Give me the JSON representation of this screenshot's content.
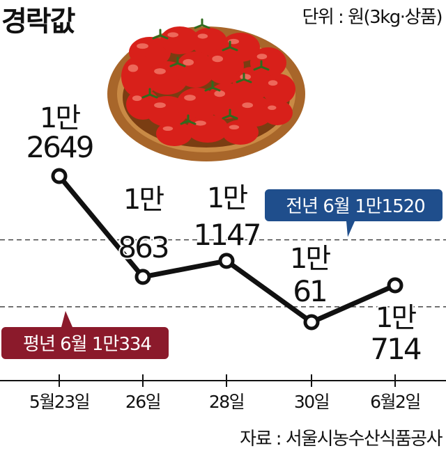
{
  "title": "경락값",
  "unit_label": "단위 : 원(3kg·상품)",
  "source": "자료 : 서울시농수산식품공사",
  "chart_data": {
    "type": "line",
    "categories": [
      "5월23일",
      "26일",
      "28일",
      "30일",
      "6월2일"
    ],
    "values": [
      12649,
      10863,
      11147,
      10061,
      10714
    ],
    "point_labels": [
      [
        "1만",
        "2649"
      ],
      [
        "1만",
        "863"
      ],
      [
        "1만",
        "1147"
      ],
      [
        "1만",
        "61"
      ],
      [
        "1만",
        "714"
      ]
    ],
    "references": [
      {
        "label": "전년 6월 1만1520",
        "value": 11520,
        "color": "#1f4e8c"
      },
      {
        "label": "평년 6월 1만334",
        "value": 10334,
        "color": "#8b1a2b"
      }
    ],
    "line_color": "#111111",
    "grid": false,
    "legend": "none"
  }
}
